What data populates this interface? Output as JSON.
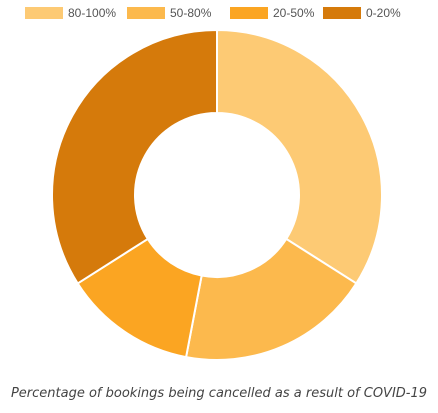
{
  "chart_data": {
    "type": "pie",
    "donut": true,
    "categories": [
      "80-100%",
      "50-80%",
      "20-50%",
      "0-20%"
    ],
    "values": [
      34,
      19,
      13,
      34
    ],
    "colors": [
      "#FDCA74",
      "#FCB94D",
      "#FBA522",
      "#D57A0B"
    ],
    "legend_position": "top",
    "title": ""
  },
  "caption": "Percentage of bookings being cancelled as a result of COVID-19"
}
